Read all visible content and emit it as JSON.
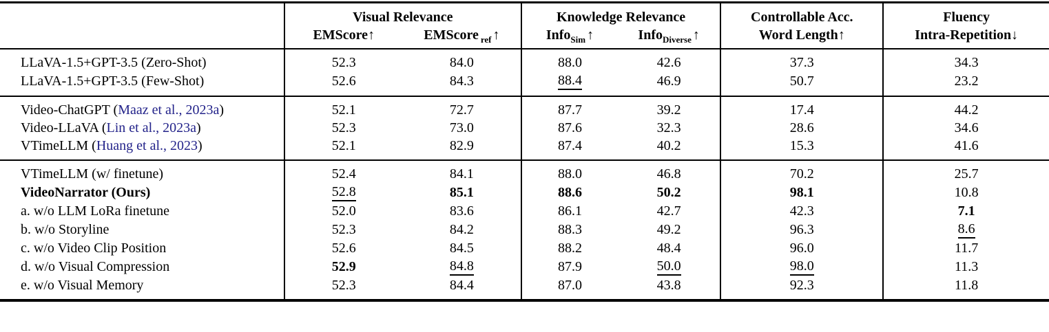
{
  "colors": {
    "citation": "#23238a",
    "text": "#000000",
    "rule": "#000000",
    "background": "#ffffff"
  },
  "table": {
    "groups": [
      {
        "label": "Visual Relevance",
        "span": 2
      },
      {
        "label": "Knowledge Relevance",
        "span": 2
      },
      {
        "label": "Controllable Acc.",
        "span": 1
      },
      {
        "label": "Fluency",
        "span": 1
      }
    ],
    "columns": [
      {
        "base": "EMScore",
        "sub": "",
        "arrow": "↑",
        "gap": false
      },
      {
        "base": "EMScore",
        "sub": "ref",
        "arrow": "↑",
        "gap": true
      },
      {
        "base": "Info",
        "sub": "Sim",
        "arrow": "↑",
        "gap": true
      },
      {
        "base": "Info",
        "sub": "Diverse",
        "arrow": "↑",
        "gap": true
      },
      {
        "base": "Word Length",
        "sub": "",
        "arrow": "↑",
        "gap": false
      },
      {
        "base": "Intra-Repetition",
        "sub": "",
        "arrow": "↓",
        "gap": false
      }
    ],
    "sections": [
      {
        "rows": [
          {
            "label": {
              "text": "LLaVA-1.5+GPT-3.5 (Zero-Shot)"
            },
            "values": [
              [
                "52.3",
                ""
              ],
              [
                "84.0",
                ""
              ],
              [
                "88.0",
                ""
              ],
              [
                "42.6",
                ""
              ],
              [
                "37.3",
                ""
              ],
              [
                "34.3",
                ""
              ]
            ]
          },
          {
            "label": {
              "text": "LLaVA-1.5+GPT-3.5 (Few-Shot)"
            },
            "values": [
              [
                "52.6",
                ""
              ],
              [
                "84.3",
                ""
              ],
              [
                "88.4",
                "u"
              ],
              [
                "46.9",
                ""
              ],
              [
                "50.7",
                ""
              ],
              [
                "23.2",
                ""
              ]
            ]
          }
        ]
      },
      {
        "rows": [
          {
            "label": {
              "pre": "Video-ChatGPT (",
              "cite": "Maaz et al., 2023a",
              "post": ")"
            },
            "values": [
              [
                "52.1",
                ""
              ],
              [
                "72.7",
                ""
              ],
              [
                "87.7",
                ""
              ],
              [
                "39.2",
                ""
              ],
              [
                "17.4",
                ""
              ],
              [
                "44.2",
                ""
              ]
            ]
          },
          {
            "label": {
              "pre": "Video-LLaVA (",
              "cite": "Lin et al., 2023a",
              "post": ")"
            },
            "values": [
              [
                "52.3",
                ""
              ],
              [
                "73.0",
                ""
              ],
              [
                "87.6",
                ""
              ],
              [
                "32.3",
                ""
              ],
              [
                "28.6",
                ""
              ],
              [
                "34.6",
                ""
              ]
            ]
          },
          {
            "label": {
              "pre": "VTimeLLM (",
              "cite": "Huang et al., 2023",
              "post": ")"
            },
            "values": [
              [
                "52.1",
                ""
              ],
              [
                "82.9",
                ""
              ],
              [
                "87.4",
                ""
              ],
              [
                "40.2",
                ""
              ],
              [
                "15.3",
                ""
              ],
              [
                "41.6",
                ""
              ]
            ]
          }
        ]
      },
      {
        "rows": [
          {
            "label": {
              "text": "VTimeLLM (w/ finetune)"
            },
            "values": [
              [
                "52.4",
                ""
              ],
              [
                "84.1",
                ""
              ],
              [
                "88.0",
                ""
              ],
              [
                "46.8",
                ""
              ],
              [
                "70.2",
                ""
              ],
              [
                "25.7",
                ""
              ]
            ]
          },
          {
            "label": {
              "text": "VideoNarrator (Ours)",
              "bold": true
            },
            "values": [
              [
                "52.8",
                "u"
              ],
              [
                "85.1",
                "b"
              ],
              [
                "88.6",
                "b"
              ],
              [
                "50.2",
                "b"
              ],
              [
                "98.1",
                "b"
              ],
              [
                "10.8",
                ""
              ]
            ]
          },
          {
            "label": {
              "text": "a. w/o LLM LoRa finetune"
            },
            "values": [
              [
                "52.0",
                ""
              ],
              [
                "83.6",
                ""
              ],
              [
                "86.1",
                ""
              ],
              [
                "42.7",
                ""
              ],
              [
                "42.3",
                ""
              ],
              [
                "7.1",
                "b"
              ]
            ]
          },
          {
            "label": {
              "text": "b. w/o Storyline"
            },
            "values": [
              [
                "52.3",
                ""
              ],
              [
                "84.2",
                ""
              ],
              [
                "88.3",
                ""
              ],
              [
                "49.2",
                ""
              ],
              [
                "96.3",
                ""
              ],
              [
                "8.6",
                "u"
              ]
            ]
          },
          {
            "label": {
              "text": "c. w/o Video Clip Position"
            },
            "values": [
              [
                "52.6",
                ""
              ],
              [
                "84.5",
                ""
              ],
              [
                "88.2",
                ""
              ],
              [
                "48.4",
                ""
              ],
              [
                "96.0",
                ""
              ],
              [
                "11.7",
                ""
              ]
            ]
          },
          {
            "label": {
              "text": "d. w/o Visual Compression"
            },
            "values": [
              [
                "52.9",
                "b"
              ],
              [
                "84.8",
                "u"
              ],
              [
                "87.9",
                ""
              ],
              [
                "50.0",
                "u"
              ],
              [
                "98.0",
                "u"
              ],
              [
                "11.3",
                ""
              ]
            ]
          },
          {
            "label": {
              "text": "e. w/o Visual Memory"
            },
            "values": [
              [
                "52.3",
                ""
              ],
              [
                "84.4",
                ""
              ],
              [
                "87.0",
                ""
              ],
              [
                "43.8",
                ""
              ],
              [
                "92.3",
                ""
              ],
              [
                "11.8",
                ""
              ]
            ]
          }
        ]
      }
    ]
  }
}
